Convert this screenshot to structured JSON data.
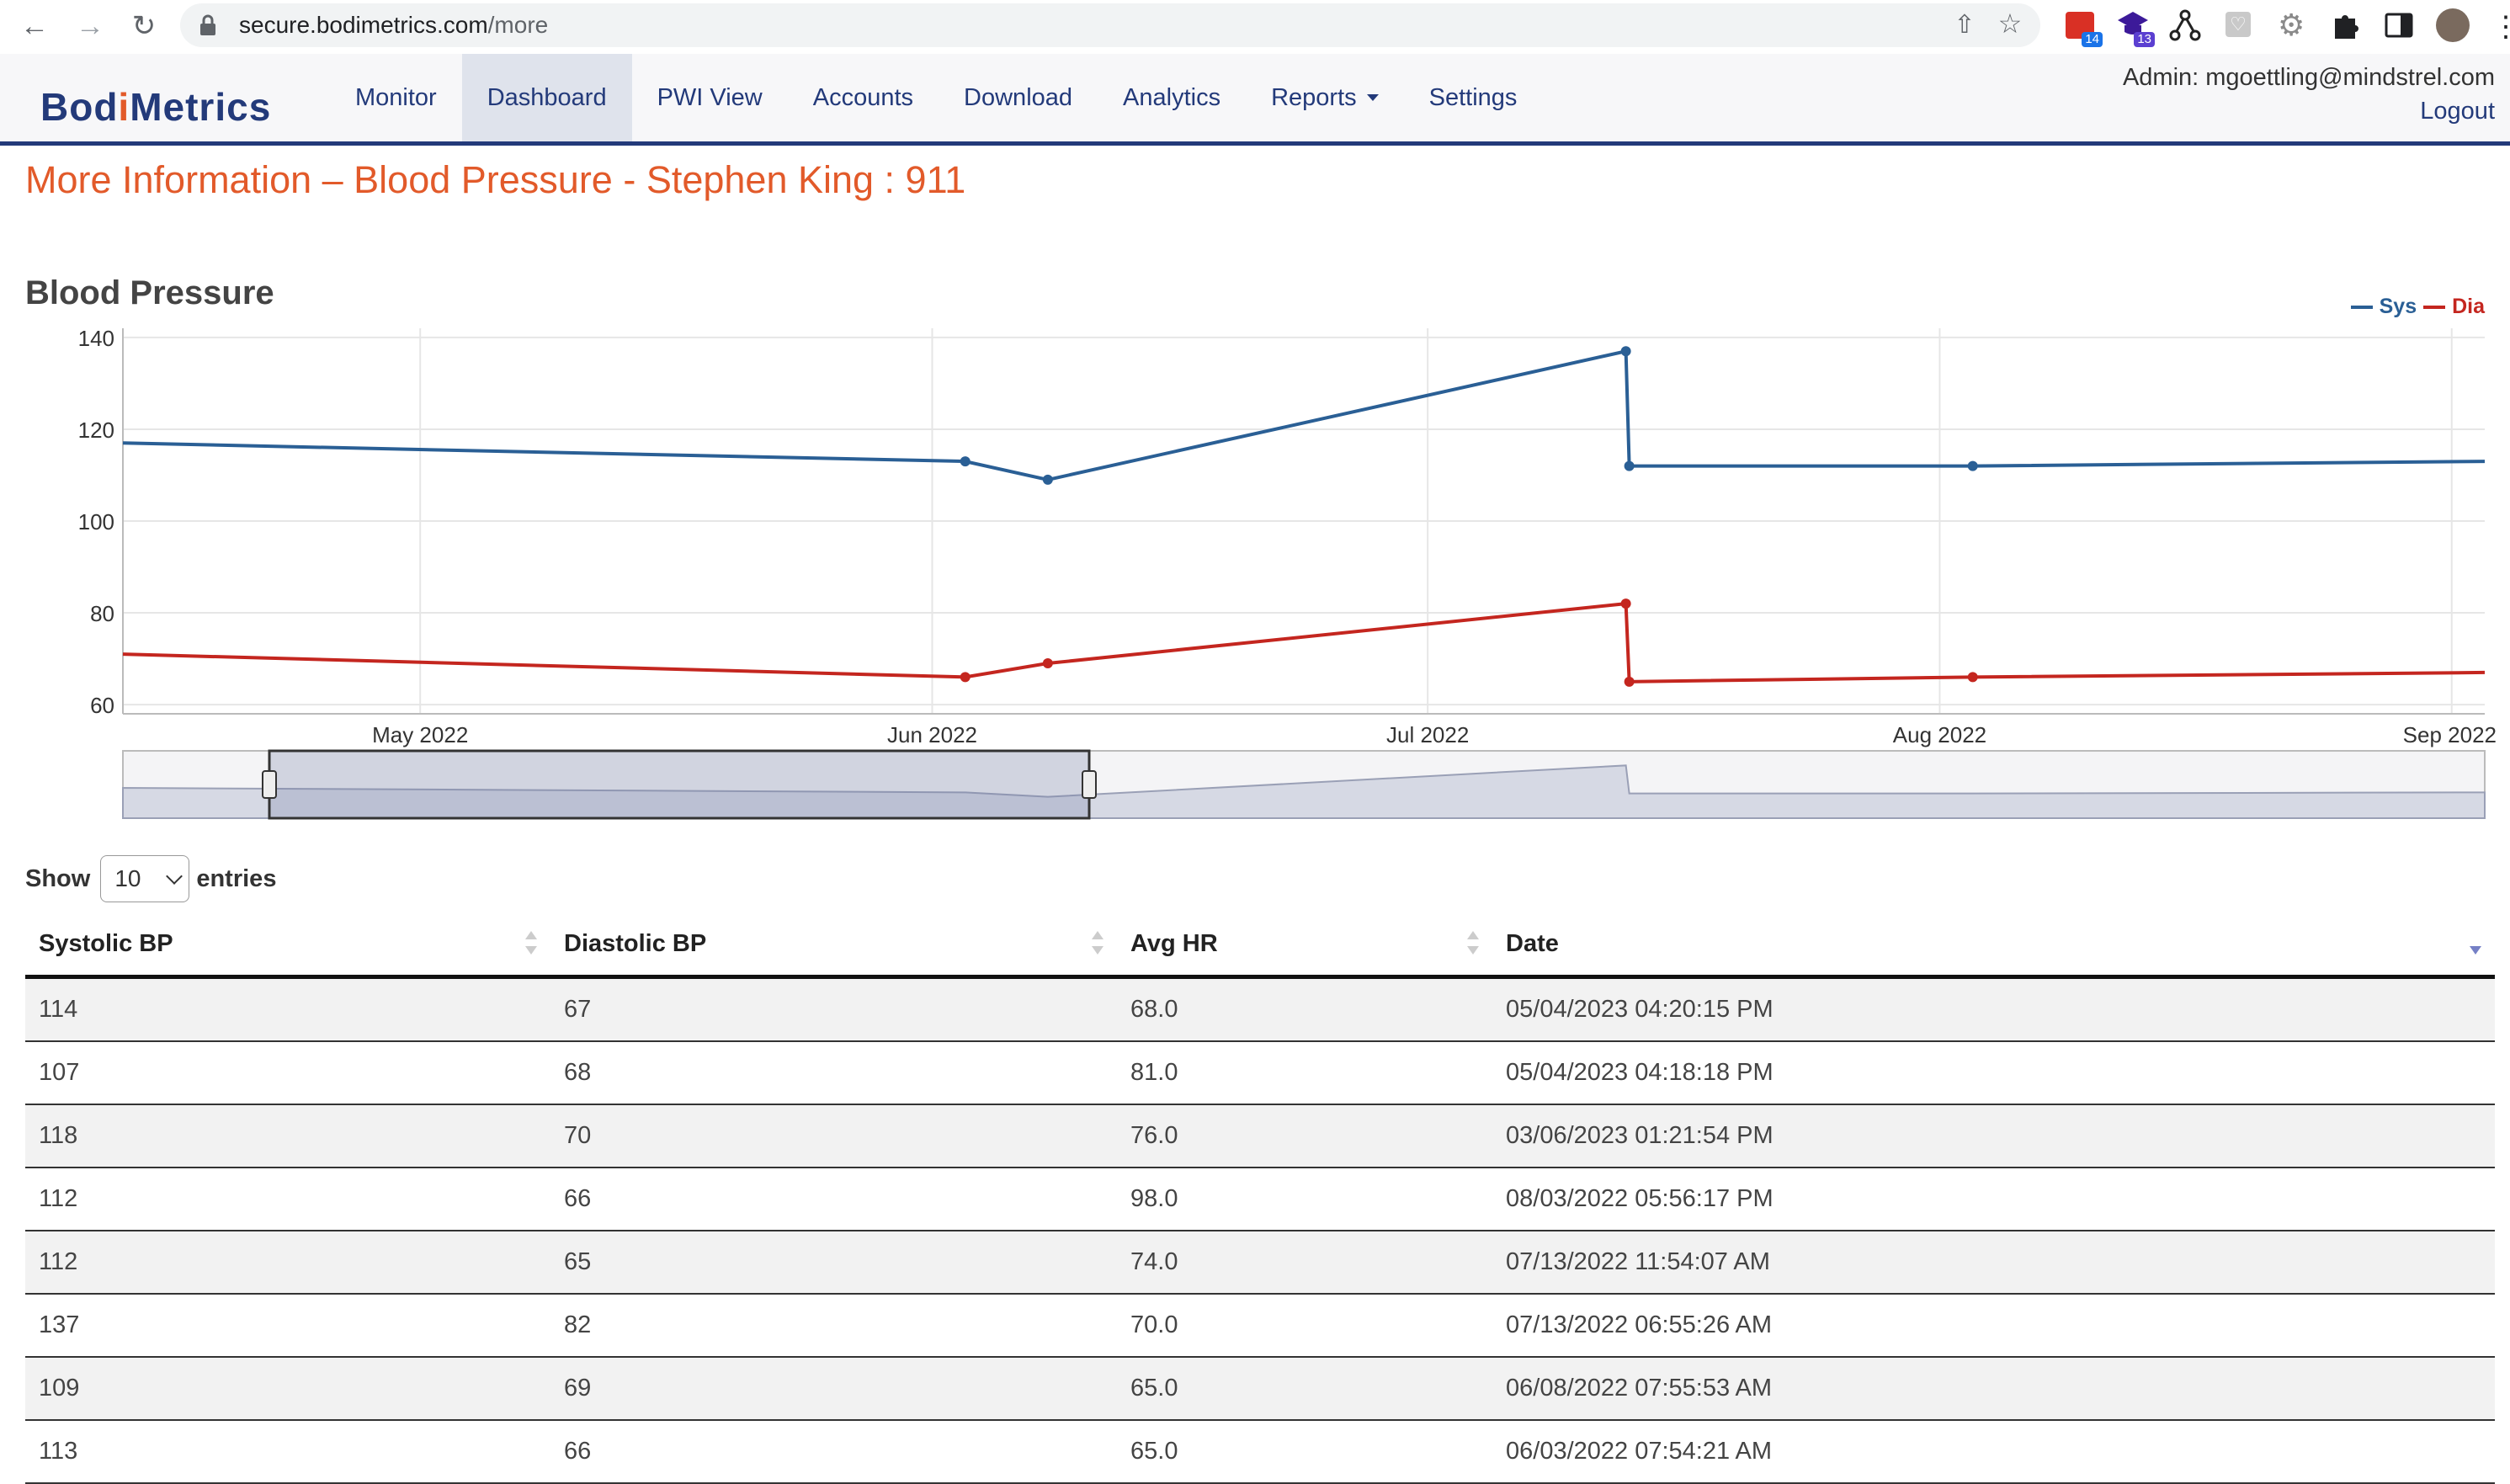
{
  "browser": {
    "url_host": "secure.bodimetrics.com",
    "url_path": "/more",
    "extensions": [
      {
        "icon": "calendar-ext-icon",
        "badge": "14"
      },
      {
        "icon": "grad-cap-ext-icon",
        "badge": "13"
      },
      {
        "icon": "network-ext-icon"
      },
      {
        "icon": "translate-ext-icon"
      },
      {
        "icon": "gear-ext-icon"
      },
      {
        "icon": "puzzle-icon"
      },
      {
        "icon": "sidepanel-icon"
      },
      {
        "icon": "profile-avatar"
      }
    ]
  },
  "header": {
    "logo_pre": "Bod",
    "logo_i": "i",
    "logo_post": "Metrics",
    "nav": [
      "Monitor",
      "Dashboard",
      "PWI View",
      "Accounts",
      "Download",
      "Analytics",
      "Reports",
      "Settings"
    ],
    "active_nav": "Dashboard",
    "admin_label": "Admin: mgoettling@mindstrel.com",
    "logout_label": "Logout"
  },
  "page": {
    "title": "More Information – Blood Pressure - Stephen King : 911"
  },
  "colors": {
    "sys": "#2a5f95",
    "dia": "#c4261f",
    "brand": "#233a7a",
    "accent": "#e25a2a"
  },
  "chart_data": {
    "type": "line",
    "title": "Blood Pressure",
    "x_type": "date",
    "xlim": [
      "2022-04-13",
      "2022-09-03"
    ],
    "ylim": [
      58,
      142
    ],
    "y_ticks": [
      60,
      80,
      100,
      120,
      140
    ],
    "x_ticks": [
      {
        "date": "2022-05-01",
        "label": "May 2022"
      },
      {
        "date": "2022-06-01",
        "label": "Jun 2022"
      },
      {
        "date": "2022-07-01",
        "label": "Jul 2022"
      },
      {
        "date": "2022-08-01",
        "label": "Aug 2022"
      },
      {
        "date": "2022-09-01",
        "label": "Sep 2022"
      }
    ],
    "grid": true,
    "legend_position": "top-right",
    "series": [
      {
        "name": "Sys",
        "points": [
          {
            "x": "2022-04-13",
            "y": 117,
            "marker": false
          },
          {
            "x": "2022-06-03",
            "y": 113,
            "marker": true
          },
          {
            "x": "2022-06-08",
            "y": 109,
            "marker": true
          },
          {
            "x": "2022-07-13",
            "y": 137,
            "marker": true
          },
          {
            "x": "2022-07-13",
            "y": 112,
            "marker": true
          },
          {
            "x": "2022-08-03",
            "y": 112,
            "marker": true
          },
          {
            "x": "2022-09-03",
            "y": 113,
            "marker": false
          }
        ]
      },
      {
        "name": "Dia",
        "points": [
          {
            "x": "2022-04-13",
            "y": 71,
            "marker": false
          },
          {
            "x": "2022-06-03",
            "y": 66,
            "marker": true
          },
          {
            "x": "2022-06-08",
            "y": 69,
            "marker": true
          },
          {
            "x": "2022-07-13",
            "y": 82,
            "marker": true
          },
          {
            "x": "2022-07-13",
            "y": 65,
            "marker": true
          },
          {
            "x": "2022-08-03",
            "y": 66,
            "marker": true
          },
          {
            "x": "2022-09-03",
            "y": 67,
            "marker": false
          }
        ]
      }
    ]
  },
  "table": {
    "length_prefix": "Show",
    "length_value": "10",
    "length_suffix": "entries",
    "columns": [
      "Systolic BP",
      "Diastolic BP",
      "Avg HR",
      "Date"
    ],
    "sorted_column": "Date",
    "sort_dir": "desc",
    "rows": [
      [
        "114",
        "67",
        "68.0",
        "05/04/2023 04:20:15 PM"
      ],
      [
        "107",
        "68",
        "81.0",
        "05/04/2023 04:18:18 PM"
      ],
      [
        "118",
        "70",
        "76.0",
        "03/06/2023 01:21:54 PM"
      ],
      [
        "112",
        "66",
        "98.0",
        "08/03/2022 05:56:17 PM"
      ],
      [
        "112",
        "65",
        "74.0",
        "07/13/2022 11:54:07 AM"
      ],
      [
        "137",
        "82",
        "70.0",
        "07/13/2022 06:55:26 AM"
      ],
      [
        "109",
        "69",
        "65.0",
        "06/08/2022 07:55:53 AM"
      ],
      [
        "113",
        "66",
        "65.0",
        "06/03/2022 07:54:21 AM"
      ]
    ]
  }
}
